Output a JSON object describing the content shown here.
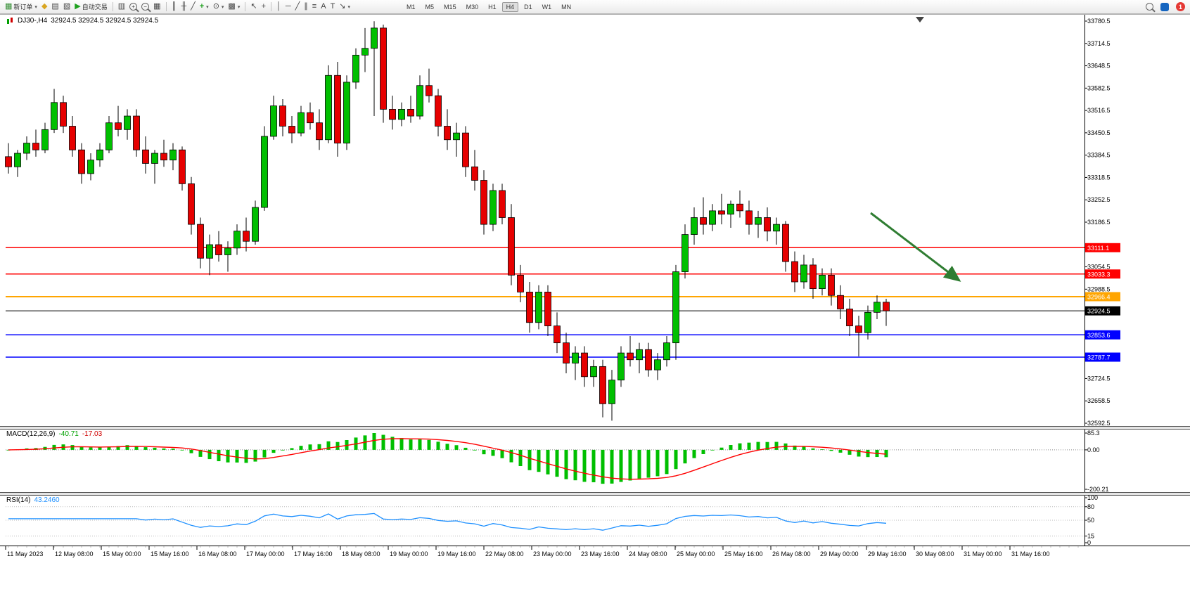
{
  "toolbar": {
    "new_order_label": "新订单",
    "autotrading_label": "自动交易",
    "timeframes": [
      "M1",
      "M5",
      "M15",
      "M30",
      "H1",
      "H4",
      "D1",
      "W1",
      "MN"
    ],
    "active_timeframe": "H4",
    "notification_count": "1"
  },
  "icons": {
    "new_order": "▦",
    "caret": "▾",
    "metaeditor": "◆",
    "market_watch": "▤",
    "navigator": "▧",
    "autotrading_play": "▶",
    "new_chart": "▥",
    "plus": "+",
    "minus": "−",
    "tile": "▦",
    "bars": "║",
    "candles": "╫",
    "line": "╱",
    "indicator_add": "+",
    "clock": "⊙",
    "template": "▩",
    "cursor": "↖",
    "crosshair": "+",
    "vline": "│",
    "hline": "─",
    "trendline": "╱",
    "channel": "∥",
    "fibonacci": "≡",
    "text": "A",
    "label": "T",
    "arrow": "↘"
  },
  "chart_header": {
    "title": "DJ30-,H4",
    "ohlc": "32924.5 32924.5 32924.5 32924.5"
  },
  "macd_header": {
    "name": "MACD(12,26,9)",
    "main": "-40.71",
    "signal": "-17.03",
    "axis": [
      "85.3",
      "0.00",
      "-200.21"
    ]
  },
  "rsi_header": {
    "name": "RSI(14)",
    "value": "43.2460",
    "axis": [
      "100",
      "80",
      "50",
      "15",
      "0"
    ]
  },
  "colors": {
    "candle_up": "#00bf00",
    "candle_down": "#e60000",
    "macd_histogram": "#00bf00",
    "macd_signal": "#ff0000",
    "rsi_line": "#1E90FF"
  },
  "chart_data": {
    "type": "candlestick",
    "symbol": "DJ30-",
    "timeframe": "H4",
    "ohlc_current": [
      32924.5,
      32924.5,
      32924.5,
      32924.5
    ],
    "y_axis": {
      "max": 33780.5,
      "min": 32592.5,
      "tick_step": 66,
      "tick_labels": [
        "33780.5",
        "33714.5",
        "33648.5",
        "33582.5",
        "33516.5",
        "33450.5",
        "33384.5",
        "33318.5",
        "33252.5",
        "33186.5",
        "33054.5",
        "32988.5",
        "32724.5",
        "32658.5",
        "32592.5"
      ]
    },
    "macd_scale": {
      "max": 85.3,
      "min": -200.21
    },
    "levels": [
      {
        "price": 33111.1,
        "label": "33111.1",
        "color": "#ff0000",
        "width": 1.5
      },
      {
        "price": 33033.3,
        "label": "33033.3",
        "color": "#ff0000",
        "width": 1.5
      },
      {
        "price": 32966.4,
        "label": "32966.4",
        "color": "#ffa500",
        "width": 2
      },
      {
        "price": 32924.5,
        "label": "32924.5",
        "color": "#000000",
        "width": 1
      },
      {
        "price": 32853.6,
        "label": "32853.6",
        "color": "#0000ff",
        "width": 1.5
      },
      {
        "price": 32787.7,
        "label": "32787.7",
        "color": "#0000ff",
        "width": 1.5
      }
    ],
    "annotation_arrow": {
      "from": [
        1238,
        303
      ],
      "to": [
        1364,
        399
      ],
      "color": "#2f7d32"
    },
    "x_axis_labels": [
      "11 May 2023",
      "12 May 08:00",
      "15 May 00:00",
      "15 May 16:00",
      "16 May 08:00",
      "17 May 00:00",
      "17 May 16:00",
      "18 May 08:00",
      "19 May 00:00",
      "19 May 16:00",
      "22 May 08:00",
      "23 May 00:00",
      "23 May 16:00",
      "24 May 08:00",
      "25 May 00:00",
      "25 May 16:00",
      "26 May 08:00",
      "29 May 00:00",
      "29 May 16:00",
      "30 May 08:00",
      "31 May 00:00",
      "31 May 16:00"
    ],
    "candles": [
      [
        33380,
        33420,
        33330,
        33350
      ],
      [
        33350,
        33400,
        33320,
        33390
      ],
      [
        33390,
        33440,
        33370,
        33420
      ],
      [
        33420,
        33460,
        33380,
        33400
      ],
      [
        33400,
        33480,
        33390,
        33460
      ],
      [
        33460,
        33580,
        33450,
        33540
      ],
      [
        33540,
        33560,
        33450,
        33470
      ],
      [
        33470,
        33500,
        33380,
        33400
      ],
      [
        33400,
        33420,
        33300,
        33330
      ],
      [
        33330,
        33390,
        33310,
        33370
      ],
      [
        33370,
        33420,
        33350,
        33400
      ],
      [
        33400,
        33500,
        33390,
        33480
      ],
      [
        33480,
        33530,
        33440,
        33460
      ],
      [
        33460,
        33520,
        33430,
        33500
      ],
      [
        33500,
        33520,
        33380,
        33400
      ],
      [
        33400,
        33440,
        33330,
        33360
      ],
      [
        33360,
        33400,
        33300,
        33390
      ],
      [
        33390,
        33430,
        33350,
        33370
      ],
      [
        33370,
        33420,
        33340,
        33400
      ],
      [
        33400,
        33410,
        33280,
        33300
      ],
      [
        33300,
        33320,
        33150,
        33180
      ],
      [
        33180,
        33200,
        33050,
        33080
      ],
      [
        33080,
        33150,
        33030,
        33120
      ],
      [
        33120,
        33160,
        33070,
        33090
      ],
      [
        33090,
        33130,
        33040,
        33110
      ],
      [
        33110,
        33180,
        33090,
        33160
      ],
      [
        33160,
        33200,
        33100,
        33130
      ],
      [
        33130,
        33250,
        33120,
        33230
      ],
      [
        33230,
        33470,
        33220,
        33440
      ],
      [
        33440,
        33560,
        33430,
        33530
      ],
      [
        33530,
        33550,
        33440,
        33470
      ],
      [
        33470,
        33500,
        33420,
        33450
      ],
      [
        33450,
        33530,
        33440,
        33510
      ],
      [
        33510,
        33540,
        33460,
        33480
      ],
      [
        33480,
        33520,
        33400,
        33430
      ],
      [
        33430,
        33650,
        33420,
        33620
      ],
      [
        33620,
        33660,
        33380,
        33420
      ],
      [
        33420,
        33620,
        33400,
        33600
      ],
      [
        33600,
        33700,
        33580,
        33680
      ],
      [
        33680,
        33760,
        33630,
        33700
      ],
      [
        33700,
        33780,
        33500,
        33760
      ],
      [
        33760,
        33770,
        33480,
        33520
      ],
      [
        33520,
        33560,
        33460,
        33490
      ],
      [
        33490,
        33540,
        33470,
        33520
      ],
      [
        33520,
        33560,
        33480,
        33500
      ],
      [
        33500,
        33620,
        33490,
        33590
      ],
      [
        33590,
        33640,
        33540,
        33560
      ],
      [
        33560,
        33580,
        33440,
        33470
      ],
      [
        33470,
        33520,
        33400,
        33430
      ],
      [
        33430,
        33480,
        33380,
        33450
      ],
      [
        33450,
        33470,
        33320,
        33350
      ],
      [
        33350,
        33400,
        33280,
        33310
      ],
      [
        33310,
        33340,
        33150,
        33180
      ],
      [
        33180,
        33300,
        33160,
        33280
      ],
      [
        33280,
        33300,
        33180,
        33200
      ],
      [
        33200,
        33240,
        33000,
        33030
      ],
      [
        33030,
        33060,
        32950,
        32980
      ],
      [
        32980,
        33010,
        32860,
        32890
      ],
      [
        32890,
        33000,
        32870,
        32980
      ],
      [
        32980,
        33000,
        32850,
        32880
      ],
      [
        32880,
        32920,
        32800,
        32830
      ],
      [
        32830,
        32860,
        32740,
        32770
      ],
      [
        32770,
        32820,
        32720,
        32800
      ],
      [
        32800,
        32820,
        32700,
        32730
      ],
      [
        32730,
        32780,
        32700,
        32760
      ],
      [
        32760,
        32780,
        32610,
        32650
      ],
      [
        32650,
        32750,
        32600,
        32720
      ],
      [
        32720,
        32820,
        32700,
        32800
      ],
      [
        32800,
        32850,
        32760,
        32780
      ],
      [
        32780,
        32830,
        32740,
        32810
      ],
      [
        32810,
        32830,
        32730,
        32750
      ],
      [
        32750,
        32800,
        32720,
        32780
      ],
      [
        32780,
        32850,
        32760,
        32830
      ],
      [
        32830,
        33060,
        32780,
        33040
      ],
      [
        33040,
        33180,
        33020,
        33150
      ],
      [
        33150,
        33230,
        33120,
        33200
      ],
      [
        33200,
        33260,
        33150,
        33180
      ],
      [
        33180,
        33240,
        33160,
        33220
      ],
      [
        33220,
        33270,
        33180,
        33210
      ],
      [
        33210,
        33250,
        33170,
        33240
      ],
      [
        33240,
        33280,
        33200,
        33220
      ],
      [
        33220,
        33250,
        33150,
        33180
      ],
      [
        33180,
        33220,
        33140,
        33200
      ],
      [
        33200,
        33230,
        33130,
        33160
      ],
      [
        33160,
        33200,
        33120,
        33180
      ],
      [
        33180,
        33190,
        33040,
        33070
      ],
      [
        33070,
        33100,
        32980,
        33010
      ],
      [
        33010,
        33090,
        32990,
        33060
      ],
      [
        33060,
        33080,
        32960,
        32990
      ],
      [
        32990,
        33050,
        32970,
        33030
      ],
      [
        33030,
        33050,
        32940,
        32970
      ],
      [
        32970,
        33000,
        32900,
        32930
      ],
      [
        32930,
        32960,
        32850,
        32880
      ],
      [
        32880,
        32910,
        32790,
        32860
      ],
      [
        32860,
        32940,
        32840,
        32920
      ],
      [
        32920,
        32970,
        32900,
        32950
      ],
      [
        32950,
        32960,
        32880,
        32924.5
      ]
    ]
  }
}
